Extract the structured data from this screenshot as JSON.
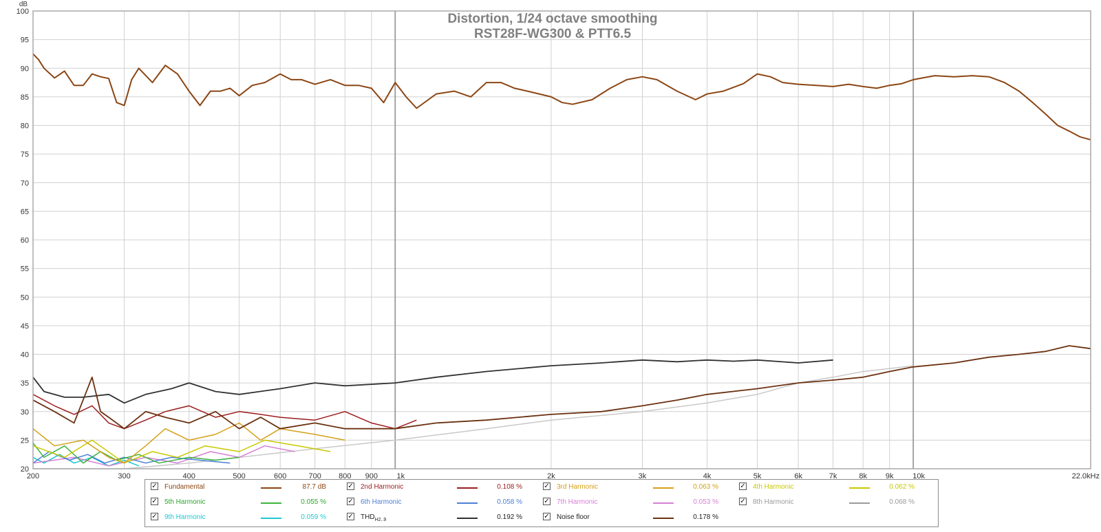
{
  "chart_data": {
    "type": "line",
    "title": "Distortion, 1/24 octave smoothing",
    "subtitle": "RST28F-WG300 & PTT6.5",
    "ylabel": "dB",
    "x_unit_label": "22.0kHz",
    "xlim": [
      200,
      22000
    ],
    "ylim": [
      20,
      100
    ],
    "x_scale": "log",
    "grid": true,
    "y_ticks": [
      "100",
      "95",
      "90",
      "85",
      "80",
      "75",
      "70",
      "65",
      "60",
      "55",
      "50",
      "45",
      "40",
      "35",
      "30",
      "25",
      "20"
    ],
    "x_ticks": [
      "200",
      "300",
      "400",
      "500",
      "600",
      "700",
      "800",
      "900",
      "1k",
      "2k",
      "3k",
      "4k",
      "5k",
      "6k",
      "7k",
      "8k",
      "9k",
      "10k"
    ],
    "series": [
      {
        "name": "Fundamental",
        "color": "#8b4513",
        "value_label": "87.7 dB",
        "x": [
          200,
          205,
          210,
          220,
          230,
          240,
          250,
          260,
          270,
          280,
          290,
          300,
          310,
          320,
          340,
          360,
          380,
          400,
          420,
          440,
          460,
          480,
          500,
          530,
          560,
          600,
          630,
          660,
          700,
          750,
          800,
          850,
          900,
          950,
          1000,
          1050,
          1100,
          1200,
          1300,
          1400,
          1500,
          1600,
          1700,
          1800,
          2000,
          2100,
          2200,
          2400,
          2600,
          2800,
          3000,
          3200,
          3500,
          3800,
          4000,
          4300,
          4700,
          5000,
          5300,
          5600,
          6000,
          6500,
          7000,
          7500,
          8000,
          8500,
          9000,
          9500,
          10000,
          11000,
          12000,
          13000,
          14000,
          15000,
          16000,
          17000,
          18000,
          19000,
          20000,
          21000,
          22000
        ],
        "y": [
          92.5,
          91.5,
          90,
          88.3,
          89.5,
          87,
          87,
          89,
          88.5,
          88.2,
          84,
          83.5,
          88,
          90,
          87.5,
          90.5,
          89,
          86,
          83.5,
          86,
          86,
          86.5,
          85.2,
          87,
          87.5,
          89,
          88,
          88,
          87.2,
          88,
          87,
          87,
          86.5,
          84,
          87.5,
          85,
          83,
          85.5,
          86,
          85,
          87.5,
          87.5,
          86.5,
          86,
          85,
          84,
          83.7,
          84.5,
          86.5,
          88,
          88.5,
          88,
          86,
          84.5,
          85.5,
          86,
          87.3,
          89,
          88.5,
          87.5,
          87.2,
          87,
          86.8,
          87.2,
          86.8,
          86.5,
          87,
          87.3,
          88,
          88.7,
          88.5,
          88.7,
          88.5,
          87.5,
          86,
          84,
          82,
          80,
          79,
          78,
          77.5
        ]
      },
      {
        "name": "2nd Harmonic",
        "color": "#9b1b1b",
        "value_label": "0.108 %",
        "x": [
          200,
          220,
          240,
          260,
          280,
          300,
          330,
          360,
          400,
          450,
          500,
          550,
          600,
          700,
          800,
          900,
          1000,
          1100
        ],
        "y": [
          33,
          31,
          29.5,
          31,
          28,
          27,
          28.5,
          30,
          31,
          29,
          30,
          29.5,
          29,
          28.5,
          30,
          28,
          27,
          28.5
        ]
      },
      {
        "name": "3rd Harmonic",
        "color": "#d4a017",
        "value_label": "0.063 %",
        "x": [
          200,
          220,
          250,
          280,
          300,
          330,
          360,
          400,
          450,
          500,
          550,
          600,
          700,
          800
        ],
        "y": [
          27,
          24,
          25,
          22,
          21,
          24,
          27,
          25,
          26,
          28,
          25,
          27,
          26,
          25
        ]
      },
      {
        "name": "4th Harmonic",
        "color": "#c8c800",
        "value_label": "0.062 %",
        "x": [
          200,
          230,
          260,
          300,
          340,
          380,
          430,
          500,
          560,
          650,
          750
        ],
        "y": [
          24,
          22,
          25,
          21,
          23,
          22,
          24,
          23,
          25,
          24,
          23
        ]
      },
      {
        "name": "5th Harmonic",
        "color": "#3cb43c",
        "value_label": "0.055 %",
        "x": [
          200,
          210,
          230,
          250,
          270,
          290,
          320,
          350,
          400,
          450,
          500
        ],
        "y": [
          24.5,
          22,
          24,
          21,
          23,
          21.5,
          22.5,
          21,
          22,
          21.5,
          22
        ]
      },
      {
        "name": "6th Harmonic",
        "color": "#4a7fd6",
        "value_label": "0.058 %",
        "x": [
          200,
          215,
          235,
          255,
          275,
          300,
          330,
          370,
          420,
          480
        ],
        "y": [
          21,
          23,
          21.5,
          22.5,
          21,
          22,
          21,
          22,
          21.5,
          21
        ]
      },
      {
        "name": "7th Harmonic",
        "color": "#d67fd6",
        "value_label": "0.053 %",
        "x": [
          200,
          240,
          280,
          330,
          380,
          440,
          500,
          560,
          640
        ],
        "y": [
          21,
          22,
          20.5,
          22,
          21,
          23,
          22,
          24,
          23
        ]
      },
      {
        "name": "8th Harmonic",
        "color": "#9a9a9a",
        "value_label": "0.068 %",
        "x": [
          200,
          300,
          400,
          500,
          700,
          1000,
          1500,
          2000,
          3000,
          4000,
          5000,
          6000,
          7000,
          8000,
          9000,
          10000
        ],
        "y": [
          20,
          20,
          21,
          22,
          23.5,
          25,
          27,
          28.5,
          30,
          31.5,
          33,
          35,
          36,
          37,
          37.5,
          38
        ]
      },
      {
        "name": "9th Harmonic",
        "color": "#1ec8d0",
        "value_label": "0.059 %",
        "x": [
          200,
          210,
          225,
          240,
          260,
          280,
          300,
          320
        ],
        "y": [
          22,
          21,
          22.5,
          21,
          22,
          20.5,
          21.5,
          20.5
        ]
      },
      {
        "name": "THD",
        "color": "#303030",
        "value_label": "0.192 %",
        "x": [
          200,
          210,
          230,
          250,
          280,
          300,
          330,
          370,
          400,
          450,
          500,
          600,
          700,
          800,
          1000,
          1200,
          1500,
          2000,
          2500,
          3000,
          3500,
          4000,
          4500,
          5000,
          6000,
          7000
        ],
        "y": [
          36,
          33.5,
          32.5,
          32.5,
          33,
          31.5,
          33,
          34,
          35,
          33.5,
          33,
          34,
          35,
          34.5,
          35,
          36,
          37,
          38,
          38.5,
          39,
          38.7,
          39,
          38.8,
          39,
          38.5,
          39
        ]
      },
      {
        "name": "Noise floor",
        "color": "#6a3010",
        "value_label": "0.178 %",
        "x": [
          200,
          220,
          240,
          260,
          270,
          280,
          300,
          330,
          360,
          400,
          450,
          500,
          550,
          600,
          700,
          800,
          900,
          1000,
          1200,
          1500,
          2000,
          2500,
          3000,
          3500,
          4000,
          5000,
          6000,
          7000,
          8000,
          9000,
          10000,
          12000,
          14000,
          16000,
          18000,
          20000,
          22000
        ],
        "y": [
          32,
          30,
          28,
          36,
          30,
          29,
          27,
          30,
          29,
          28,
          30,
          27,
          29,
          27,
          28,
          27,
          27,
          27,
          28,
          28.5,
          29.5,
          30,
          31,
          32,
          33,
          34,
          35,
          35.5,
          36,
          37,
          37.8,
          38.5,
          39.5,
          40,
          40.5,
          41.5,
          41
        ]
      }
    ]
  },
  "legend": {
    "items": [
      {
        "label": "Fundamental",
        "label_color": "#8b4513",
        "line_color": "#8b4513",
        "value": "87.7 dB",
        "value_color": "#8b4513",
        "checked": "✓"
      },
      {
        "label": "2nd Harmonic",
        "label_color": "#9b1b1b",
        "line_color": "#9b1b1b",
        "value": "0.108 %",
        "value_color": "#9b1b1b",
        "checked": "✓"
      },
      {
        "label": "3rd Harmonic",
        "label_color": "#d4a017",
        "line_color": "#d4a017",
        "value": "0.063 %",
        "value_color": "#d4a017",
        "checked": "✓"
      },
      {
        "label": "4th Harmonic",
        "label_color": "#c8c800",
        "line_color": "#c8c800",
        "value": "0.062 %",
        "value_color": "#c8c800",
        "checked": "✓"
      },
      {
        "label": "5th Harmonic",
        "label_color": "#2aa52a",
        "line_color": "#3cb43c",
        "value": "0.055 %",
        "value_color": "#2aa52a",
        "checked": "✓"
      },
      {
        "label": "6th Harmonic",
        "label_color": "#4a7fd6",
        "line_color": "#4a7fd6",
        "value": "0.058 %",
        "value_color": "#4a7fd6",
        "checked": "✓"
      },
      {
        "label": "7th Harmonic",
        "label_color": "#d67fd6",
        "line_color": "#d67fd6",
        "value": "0.053 %",
        "value_color": "#d67fd6",
        "checked": "✓"
      },
      {
        "label": "8th Harmonic",
        "label_color": "#9a9a9a",
        "line_color": "#9a9a9a",
        "value": "0.068 %",
        "value_color": "#9a9a9a",
        "checked": "✓"
      },
      {
        "label": "9th Harmonic",
        "label_color": "#1ec8d0",
        "line_color": "#1ec8d0",
        "value": "0.059 %",
        "value_color": "#1ec8d0",
        "checked": "✓"
      },
      {
        "label": "THD",
        "label_sub": "H2..9",
        "label_color": "#222222",
        "line_color": "#303030",
        "value": "0.192 %",
        "value_color": "#222222",
        "checked": "✓"
      },
      {
        "label": "Noise floor",
        "label_color": "#222222",
        "line_color": "#6a3010",
        "value": "0.178 %",
        "value_color": "#222222",
        "checked": "✓"
      }
    ]
  }
}
